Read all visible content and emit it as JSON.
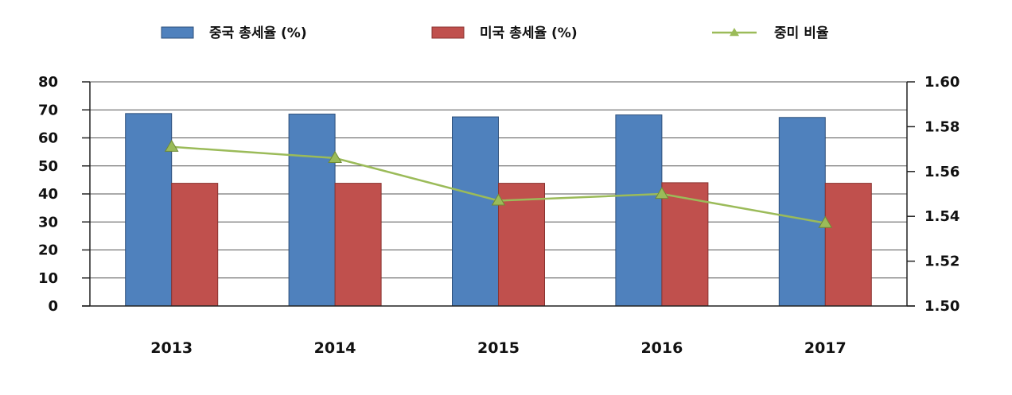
{
  "chart_data": {
    "type": "bar",
    "categories": [
      "2013",
      "2014",
      "2015",
      "2016",
      "2017"
    ],
    "series": [
      {
        "name": "중국 총세율 (%)",
        "type": "bar",
        "axis": "left",
        "color": "#4F81BD",
        "values": [
          68.7,
          68.5,
          67.5,
          68.2,
          67.3
        ]
      },
      {
        "name": "미국 총세율 (%)",
        "type": "bar",
        "axis": "left",
        "color": "#C0504D",
        "values": [
          43.8,
          43.8,
          43.8,
          44.0,
          43.8
        ]
      },
      {
        "name": "중미 비율",
        "type": "line",
        "axis": "right",
        "color": "#9BBB59",
        "marker": "triangle",
        "values": [
          1.571,
          1.566,
          1.547,
          1.55,
          1.537
        ]
      }
    ],
    "y_left": {
      "min": 0,
      "max": 80,
      "ticks": [
        "0",
        "10",
        "20",
        "30",
        "40",
        "50",
        "60",
        "70",
        "80"
      ]
    },
    "y_right": {
      "min": 1.5,
      "max": 1.6,
      "ticks": [
        "1.50",
        "1.52",
        "1.54",
        "1.56",
        "1.58",
        "1.60"
      ]
    },
    "grid": true,
    "legend_position": "top"
  }
}
